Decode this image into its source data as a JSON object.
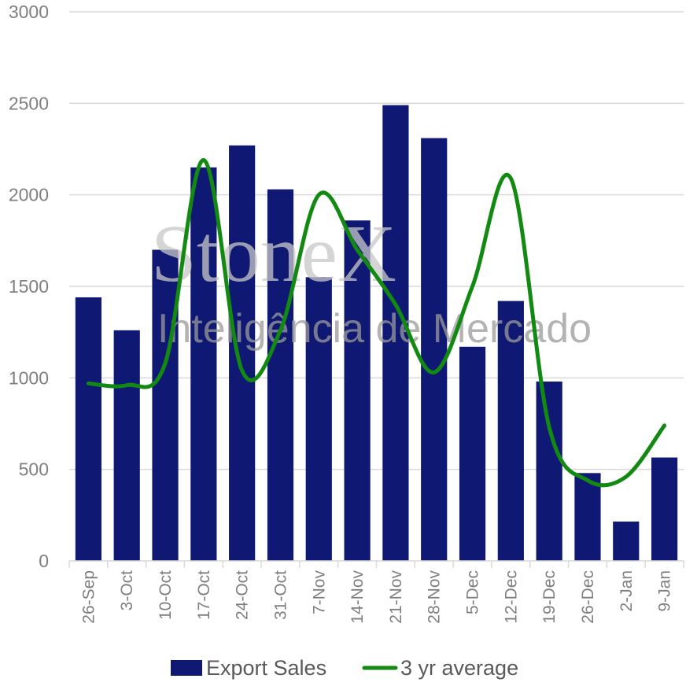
{
  "chart_data": {
    "type": "bar",
    "categories": [
      "26-Sep",
      "3-Oct",
      "10-Oct",
      "17-Oct",
      "24-Oct",
      "31-Oct",
      "7-Nov",
      "14-Nov",
      "21-Nov",
      "28-Nov",
      "5-Dec",
      "12-Dec",
      "19-Dec",
      "26-Dec",
      "2-Jan",
      "9-Jan"
    ],
    "series": [
      {
        "name": "Export Sales",
        "type": "bar",
        "color": "#0f1872",
        "values": [
          1440,
          1260,
          1700,
          2150,
          2270,
          2030,
          1550,
          1860,
          2490,
          2310,
          1170,
          1420,
          980,
          480,
          215,
          565
        ]
      },
      {
        "name": "3 yr average",
        "type": "line",
        "smooth": true,
        "color": "#128a12",
        "values": [
          970,
          960,
          1080,
          2190,
          1040,
          1260,
          2000,
          1700,
          1400,
          1030,
          1500,
          2090,
          730,
          440,
          460,
          740
        ]
      }
    ],
    "y_ticks": [
      "0",
      "500",
      "1000",
      "1500",
      "2000",
      "2500",
      "3000"
    ],
    "ylim": [
      0,
      3000
    ],
    "grid": true,
    "legend_position": "bottom",
    "watermark": [
      "StoneX",
      "Inteligência de Mercado"
    ]
  }
}
